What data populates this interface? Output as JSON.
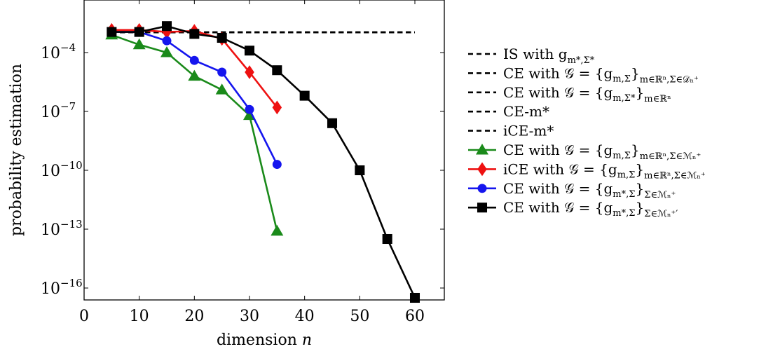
{
  "chart_data": {
    "type": "line",
    "xlabel": "dimension",
    "xlabel_var": "n",
    "ylabel": "probability estimation",
    "xlim": [
      0,
      65
    ],
    "ylog": true,
    "ylim_exp": [
      -17,
      -2
    ],
    "grid": false,
    "legend_position": "right",
    "x_ticks": [
      0,
      10,
      20,
      30,
      40,
      50,
      60
    ],
    "y_ticks": [
      {
        "base": "10",
        "exp": "−4",
        "value_exp": -4
      },
      {
        "base": "10",
        "exp": "−7",
        "value_exp": -7
      },
      {
        "base": "10",
        "exp": "−10",
        "value_exp": -10
      },
      {
        "base": "10",
        "exp": "−13",
        "value_exp": -13
      },
      {
        "base": "10",
        "exp": "−16",
        "value_exp": -16
      }
    ],
    "series": [
      {
        "name": "IS with g_{m*,Σ*}",
        "legend_main": "IS with g",
        "legend_sub": "m*,Σ*",
        "color": "#000000",
        "dashed": true,
        "marker": "none",
        "x": [
          5,
          60
        ],
        "y_exp": [
          -2.97,
          -2.97
        ]
      },
      {
        "name": "CE with 𝒢 = {g_{m,Σ}}_{m∈ℝⁿ,Σ∈𝒟ₙ⁺}",
        "legend_main": "CE with 𝒢 = {g",
        "legend_mid": "m,Σ",
        "legend_close": "}",
        "legend_sub": "m∈ℝⁿ,Σ∈𝒟ₙ⁺",
        "color": "#000000",
        "dashed": true,
        "marker": "none",
        "x": [
          5,
          60
        ],
        "y_exp": [
          -2.97,
          -2.97
        ]
      },
      {
        "name": "CE with 𝒢 = {g_{m,Σ*}}_{m∈ℝⁿ}",
        "legend_main": "CE with 𝒢 = {g",
        "legend_mid": "m,Σ*",
        "legend_close": "}",
        "legend_sub": "m∈ℝⁿ",
        "color": "#000000",
        "dashed": true,
        "marker": "none",
        "x": [
          5,
          60
        ],
        "y_exp": [
          -2.97,
          -2.97
        ]
      },
      {
        "name": "CE-m*",
        "legend_main": "CE-m*",
        "color": "#000000",
        "dashed": true,
        "marker": "none",
        "x": [
          5,
          60
        ],
        "y_exp": [
          -2.97,
          -2.97
        ]
      },
      {
        "name": "iCE-m*",
        "legend_main": "iCE-m*",
        "color": "#000000",
        "dashed": true,
        "marker": "none",
        "x": [
          5,
          60
        ],
        "y_exp": [
          -2.97,
          -2.97
        ]
      },
      {
        "name": "CE with 𝒢 = {g_{m,Σ}}_{m∈ℝⁿ,Σ∈ℳₙ⁺}",
        "legend_main": "CE with 𝒢 = {g",
        "legend_mid": "m,Σ",
        "legend_close": "}",
        "legend_sub": "m∈ℝⁿ,Σ∈ℳₙ⁺",
        "color": "#1a8a1a",
        "dashed": false,
        "marker": "triangle",
        "x": [
          5,
          10,
          15,
          20,
          25,
          30,
          35
        ],
        "y_exp": [
          -3.1,
          -3.6,
          -4.0,
          -5.2,
          -5.9,
          -7.2,
          -13.1
        ]
      },
      {
        "name": "iCE with 𝒢 = {g_{m,Σ}}_{m∈ℝⁿ,Σ∈ℳₙ⁺}",
        "legend_main": "iCE with 𝒢 = {g",
        "legend_mid": "m,Σ",
        "legend_close": "}",
        "legend_sub": "m∈ℝⁿ,Σ∈ℳₙ⁺",
        "color": "#ee1111",
        "dashed": false,
        "marker": "diamond",
        "x": [
          5,
          10,
          15,
          20,
          25,
          30,
          35
        ],
        "y_exp": [
          -2.85,
          -2.85,
          -2.95,
          -2.9,
          -3.3,
          -5.0,
          -6.8
        ]
      },
      {
        "name": "CE with 𝒢 = {g_{m*,Σ}}_{Σ∈ℳₙ⁺}",
        "legend_main": "CE with 𝒢 = {g",
        "legend_mid": "m*,Σ",
        "legend_close": "}",
        "legend_sub": "Σ∈ℳₙ⁺",
        "color": "#1515ee",
        "dashed": false,
        "marker": "circle",
        "x": [
          5,
          10,
          15,
          20,
          25,
          30,
          35
        ],
        "y_exp": [
          -2.95,
          -2.95,
          -3.4,
          -4.4,
          -5.0,
          -6.9,
          -9.7
        ]
      },
      {
        "name": "CE with 𝒢 = {g_{m*,Σ}}_{Σ∈ℳₙ⁺'}",
        "legend_main": "CE with 𝒢 = {g",
        "legend_mid": "m*,Σ",
        "legend_close": "}",
        "legend_sub": "Σ∈ℳₙ⁺′",
        "color": "#000000",
        "dashed": false,
        "marker": "square",
        "x": [
          5,
          10,
          15,
          20,
          25,
          30,
          35,
          40,
          45,
          50,
          55,
          60
        ],
        "y_exp": [
          -2.95,
          -2.95,
          -2.65,
          -3.05,
          -3.25,
          -3.9,
          -4.9,
          -6.2,
          -7.6,
          -10.0,
          -13.5,
          -16.5
        ]
      }
    ]
  }
}
